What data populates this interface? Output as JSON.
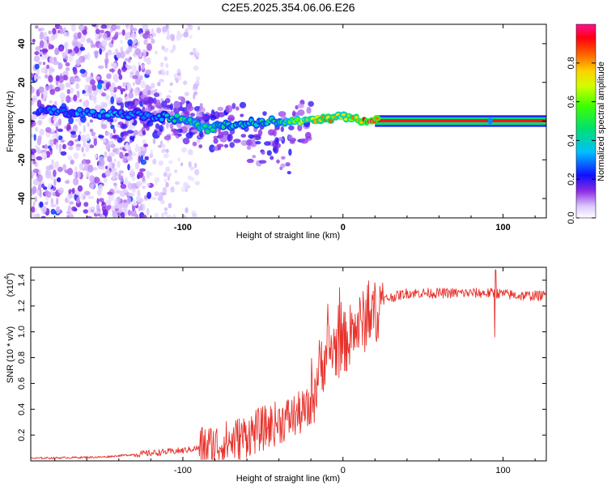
{
  "title": "C2E5.2025.354.06.06.E26",
  "chart_data": [
    {
      "type": "heatmap",
      "name": "spectrogram",
      "xlabel": "Height of straight line (km)",
      "ylabel": "Frequency (Hz)",
      "xlim": [
        -195,
        127
      ],
      "ylim": [
        -50,
        50
      ],
      "xticks": [
        -100,
        0,
        100
      ],
      "xtick_labels": [
        "-100",
        "0",
        "100"
      ],
      "yticks": [
        -40,
        -20,
        0,
        20,
        40
      ],
      "ytick_labels": [
        "-40",
        "-20",
        "0",
        "20",
        "40"
      ],
      "colorbar": {
        "label": "Normalized spectral amplitude",
        "range": [
          0,
          1
        ],
        "ticks": [
          0.0,
          0.2,
          0.4,
          0.6,
          0.8
        ],
        "tick_labels": [
          "0.0",
          "0.2",
          "0.4",
          "0.6",
          "0.8"
        ]
      },
      "ridge": {
        "description_x": [
          -190,
          -150,
          -120,
          -100,
          -85,
          -70,
          -55,
          -40,
          -25,
          -10,
          0,
          10,
          20,
          127
        ],
        "frequency": [
          5,
          4,
          3,
          1,
          -4,
          -2,
          -1,
          0,
          0,
          1,
          2,
          1,
          0,
          0
        ],
        "amplitude": [
          0.3,
          0.35,
          0.35,
          0.5,
          0.55,
          0.45,
          0.45,
          0.5,
          0.7,
          0.85,
          0.7,
          0.9,
          1.0,
          1.0
        ]
      }
    },
    {
      "type": "line",
      "name": "snr",
      "xlabel": "Height of straight line (km)",
      "ylabel": "SNR (10 * v/v)",
      "multiplier_label": "(x10",
      "multiplier_exponent": "4",
      "multiplier_close": ")",
      "xlim": [
        -195,
        127
      ],
      "ylim": [
        0,
        1.5
      ],
      "xticks": [
        -100,
        0,
        100
      ],
      "xtick_labels": [
        "-100",
        "0",
        "100"
      ],
      "yticks": [
        0.2,
        0.4,
        0.6,
        0.8,
        1.0,
        1.2,
        1.4
      ],
      "ytick_labels": [
        "0.2",
        "0.4",
        "0.6",
        "0.8",
        "1.0",
        "1.2",
        "1.4"
      ],
      "series_color": "#e8322c",
      "trend": {
        "x": [
          -195,
          -150,
          -120,
          -100,
          -90,
          -80,
          -70,
          -60,
          -50,
          -40,
          -30,
          -20,
          -15,
          -10,
          0,
          10,
          20,
          25,
          40,
          60,
          80,
          95,
          110,
          127
        ],
        "y": [
          0.02,
          0.03,
          0.06,
          0.08,
          0.1,
          0.12,
          0.15,
          0.2,
          0.25,
          0.3,
          0.35,
          0.4,
          0.7,
          0.85,
          0.9,
          1.05,
          1.15,
          1.25,
          1.3,
          1.3,
          1.3,
          1.3,
          1.28,
          1.28
        ]
      }
    }
  ]
}
